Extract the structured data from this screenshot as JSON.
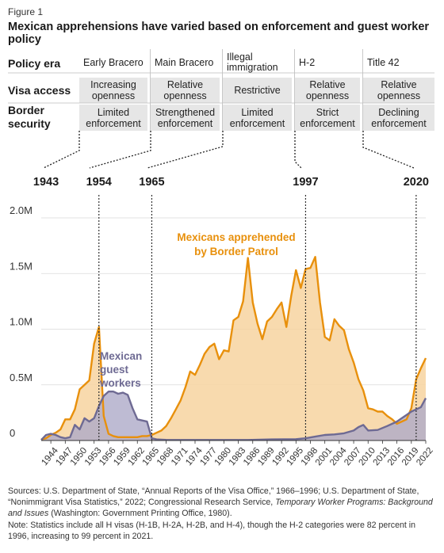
{
  "figure_label": "Figure 1",
  "title": "Mexican apprehensions have varied based on enforcement and guest worker policy",
  "table": {
    "row_headers": {
      "policy_era": "Policy era",
      "visa_access": "Visa access",
      "border_security_1": "Border",
      "border_security_2": "security"
    },
    "eras": [
      {
        "name_1": "Early Bracero",
        "name_2": "",
        "visa_1": "Increasing",
        "visa_2": "openness",
        "border_1": "Limited",
        "border_2": "enforcement"
      },
      {
        "name_1": "Main Bracero",
        "name_2": "",
        "visa_1": "Relative",
        "visa_2": "openness",
        "border_1": "Strengthened",
        "border_2": "enforcement"
      },
      {
        "name_1": "Illegal",
        "name_2": "immigration",
        "visa_1": "Restrictive",
        "visa_2": "",
        "border_1": "Limited",
        "border_2": "enforcement"
      },
      {
        "name_1": "H-2",
        "name_2": "",
        "visa_1": "Relative",
        "visa_2": "openness",
        "border_1": "Strict",
        "border_2": "enforcement"
      },
      {
        "name_1": "Title 42",
        "name_2": "",
        "visa_1": "Relative",
        "visa_2": "openness",
        "border_1": "Declining",
        "border_2": "enforcement"
      }
    ]
  },
  "colors": {
    "apprehended": "#e8900c",
    "apprehended_fill": "#f7d3a0",
    "workers": "#6e6a93",
    "workers_fill": "#aeaac8",
    "cell_bg": "#e6e6e6",
    "axis": "#333333"
  },
  "chart_data": {
    "type": "area",
    "xlim": [
      1942,
      2022
    ],
    "ylim": [
      0,
      2000000
    ],
    "yticks": [
      {
        "value": 0,
        "label": "0"
      },
      {
        "value": 500000,
        "label": "0.5M"
      },
      {
        "value": 1000000,
        "label": "1.0M"
      },
      {
        "value": 1500000,
        "label": "1.5M"
      },
      {
        "value": 2000000,
        "label": "2.0M"
      }
    ],
    "xtick_labels": [
      1944,
      1947,
      1950,
      1953,
      1956,
      1959,
      1962,
      1965,
      1968,
      1971,
      1974,
      1977,
      1980,
      1983,
      1986,
      1989,
      1992,
      1995,
      1998,
      2001,
      2004,
      2007,
      2010,
      2013,
      2016,
      2019,
      2022
    ],
    "era_boundaries": [
      1943,
      1954,
      1965,
      1997,
      2020
    ],
    "annotations": {
      "apprehended_1": "Mexicans apprehended",
      "apprehended_2": "by Border Patrol",
      "workers_1": "Mexican",
      "workers_2": "guest",
      "workers_3": "workers"
    },
    "series": [
      {
        "name": "Mexicans apprehended by Border Patrol",
        "x": [
          1942,
          1943,
          1944,
          1945,
          1946,
          1947,
          1948,
          1949,
          1950,
          1951,
          1952,
          1953,
          1954,
          1955,
          1956,
          1957,
          1958,
          1959,
          1960,
          1961,
          1962,
          1963,
          1964,
          1965,
          1966,
          1967,
          1968,
          1969,
          1970,
          1971,
          1972,
          1973,
          1974,
          1975,
          1976,
          1977,
          1978,
          1979,
          1980,
          1981,
          1982,
          1983,
          1984,
          1985,
          1986,
          1987,
          1988,
          1989,
          1990,
          1991,
          1992,
          1993,
          1994,
          1995,
          1996,
          1997,
          1998,
          1999,
          2000,
          2001,
          2002,
          2003,
          2004,
          2005,
          2006,
          2007,
          2008,
          2009,
          2010,
          2011,
          2012,
          2013,
          2014,
          2015,
          2016,
          2017,
          2018,
          2019,
          2020,
          2021,
          2022
        ],
        "values": [
          10000,
          20000,
          50000,
          70000,
          100000,
          190000,
          190000,
          280000,
          460000,
          500000,
          540000,
          870000,
          1020000,
          220000,
          60000,
          40000,
          30000,
          30000,
          30000,
          30000,
          30000,
          40000,
          40000,
          50000,
          70000,
          90000,
          130000,
          200000,
          280000,
          360000,
          480000,
          620000,
          590000,
          680000,
          780000,
          840000,
          870000,
          730000,
          810000,
          800000,
          1080000,
          1110000,
          1250000,
          1640000,
          1240000,
          1050000,
          910000,
          1070000,
          1110000,
          1180000,
          1240000,
          1020000,
          1300000,
          1530000,
          1370000,
          1540000,
          1550000,
          1650000,
          1240000,
          930000,
          900000,
          1090000,
          1030000,
          990000,
          820000,
          700000,
          550000,
          450000,
          290000,
          280000,
          260000,
          260000,
          220000,
          190000,
          150000,
          170000,
          190000,
          290000,
          550000,
          650000,
          740000
        ]
      },
      {
        "name": "Mexican guest workers",
        "x": [
          1942,
          1943,
          1944,
          1945,
          1946,
          1947,
          1948,
          1949,
          1950,
          1951,
          1952,
          1953,
          1954,
          1955,
          1956,
          1957,
          1958,
          1959,
          1960,
          1961,
          1962,
          1963,
          1964,
          1965,
          1966,
          1967,
          1968,
          1969,
          1970,
          1975,
          1980,
          1985,
          1990,
          1995,
          1997,
          1999,
          2001,
          2003,
          2005,
          2007,
          2008,
          2009,
          2010,
          2012,
          2014,
          2016,
          2017,
          2018,
          2019,
          2020,
          2021,
          2022
        ],
        "values": [
          5000,
          50000,
          60000,
          50000,
          30000,
          20000,
          30000,
          140000,
          100000,
          200000,
          170000,
          200000,
          310000,
          400000,
          440000,
          440000,
          420000,
          430000,
          410000,
          290000,
          190000,
          180000,
          170000,
          20000,
          10000,
          8000,
          6000,
          5000,
          5000,
          5000,
          5000,
          5000,
          10000,
          12000,
          20000,
          35000,
          50000,
          55000,
          65000,
          90000,
          120000,
          140000,
          90000,
          95000,
          130000,
          170000,
          200000,
          230000,
          260000,
          280000,
          300000,
          380000
        ]
      }
    ]
  },
  "source": {
    "line1": "Sources: U.S. Department of State, “Annual Reports of the Visa Office,” 1966–1996; U.S. Department of State,",
    "line2a": "“Nonimmigrant Visa Statistics,” 2022; Congressional Research Service, ",
    "line2b": "Temporary Worker Programs: Background",
    "line3a": "and Issues",
    "line3b": " (Washington: Government Printing Office, 1980).",
    "line4": "Note: Statistics include all H visas (H-1B, H-2A, H-2B, and H-4), though the H-2 categories were 82 percent in",
    "line5": "1996, increasing to 99 percent in 2021."
  }
}
